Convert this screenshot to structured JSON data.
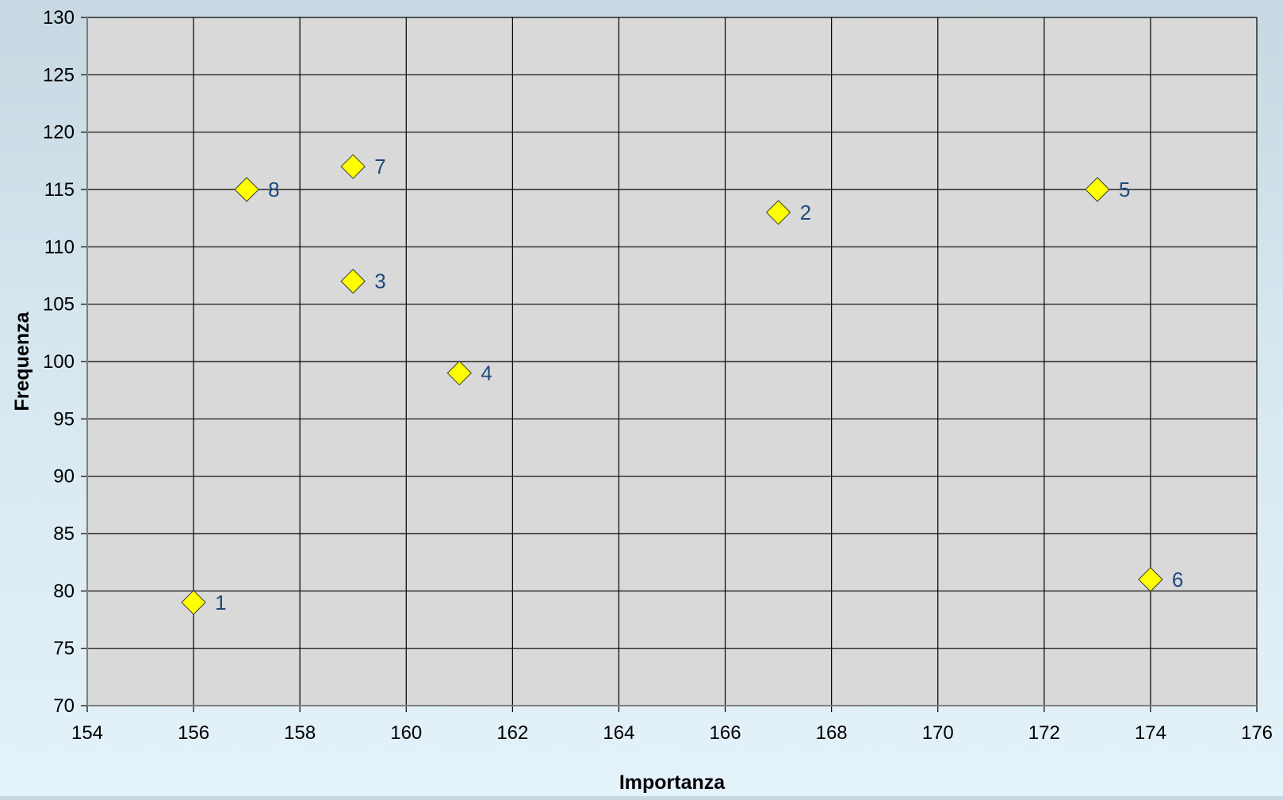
{
  "chart_data": {
    "type": "scatter",
    "title": "",
    "xlabel": "Importanza",
    "ylabel": "Frequenza",
    "xlim": [
      154,
      176
    ],
    "ylim": [
      70,
      130
    ],
    "x_ticks": [
      154,
      156,
      158,
      160,
      162,
      164,
      166,
      168,
      170,
      172,
      174,
      176
    ],
    "y_ticks": [
      70,
      75,
      80,
      85,
      90,
      95,
      100,
      105,
      110,
      115,
      120,
      125,
      130
    ],
    "grid": true,
    "legend": "none",
    "marker": "diamond",
    "marker_color": "#ffff00",
    "label_color": "#1f497d",
    "plot_background": "#d9d9d9",
    "points": [
      {
        "label": "1",
        "x": 156,
        "y": 79
      },
      {
        "label": "2",
        "x": 167,
        "y": 113
      },
      {
        "label": "3",
        "x": 159,
        "y": 107
      },
      {
        "label": "4",
        "x": 161,
        "y": 99
      },
      {
        "label": "5",
        "x": 173,
        "y": 115
      },
      {
        "label": "6",
        "x": 174,
        "y": 81
      },
      {
        "label": "7",
        "x": 159,
        "y": 117
      },
      {
        "label": "8",
        "x": 157,
        "y": 115
      }
    ]
  }
}
